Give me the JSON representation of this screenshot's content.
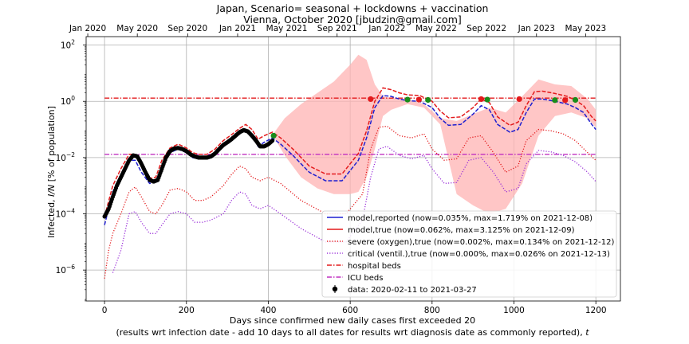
{
  "chart_data": {
    "type": "line",
    "title": "Japan, Scenario= seasonal + lockdowns + vaccination",
    "subtitle": "Vienna, October 2020 [jbudzin@gmail.com]",
    "xlabel_line1": "Days since confirmed new daily cases first exceeded 20",
    "xlabel_line2": "(results wrt infection date - add 10 days to all dates for results wrt diagnosis date as commonly reported), ",
    "xlabel_t": "t",
    "ylabel_pre": "Infected, ",
    "ylabel_ital": "I/N",
    "ylabel_post": " [% of population]",
    "y_scale": "log",
    "xlim": [
      -45,
      1260
    ],
    "ylim_exp": [
      -7.1,
      2.3
    ],
    "x_ticks": [
      "0",
      "200",
      "400",
      "600",
      "800",
      "1000",
      "1200"
    ],
    "x_tick_values": [
      0,
      200,
      400,
      600,
      800,
      1000,
      1200
    ],
    "y_tick_exponents": [
      2,
      0,
      -2,
      -4,
      -6
    ],
    "top_axis_ticks": [
      {
        "label": "Jan 2020",
        "day": -41
      },
      {
        "label": "May 2020",
        "day": 80
      },
      {
        "label": "Sep 2020",
        "day": 203
      },
      {
        "label": "Jan 2021",
        "day": 325
      },
      {
        "label": "May 2021",
        "day": 445
      },
      {
        "label": "Sep 2021",
        "day": 568
      },
      {
        "label": "Jan 2022",
        "day": 690
      },
      {
        "label": "May 2022",
        "day": 810
      },
      {
        "label": "Sep 2022",
        "day": 933
      },
      {
        "label": "Jan 2023",
        "day": 1055
      },
      {
        "label": "May 2023",
        "day": 1175
      }
    ],
    "grid": true,
    "legend_position": "lower-right",
    "colors": {
      "reported": "#1f1fd0",
      "true": "#e31a1c",
      "band": "#ffb3b3",
      "severe": "#e31a1c",
      "critical": "#9b30d9",
      "hospital": "#e31a1c",
      "icu": "#c030c0",
      "data": "#000000",
      "marker_green": "#1a8c1a",
      "marker_red": "#e31a1c"
    },
    "legend": [
      "model,reported (now=0.035%, max=1.719% on 2021-12-08)",
      "model,true (now=0.062%, max=3.125% on 2021-12-09)",
      "severe (oxygen),true (now=0.002%, max=0.134% on 2021-12-12)",
      "critical (ventil.),true (now=0.000%, max=0.026% on 2021-12-13)",
      "hospital beds",
      "ICU beds",
      "data: 2020-02-11 to 2021-03-27"
    ],
    "hospital_beds": 1.3,
    "icu_beds": 0.013,
    "series": [
      {
        "key": "band_upper",
        "x": [
          415,
          440,
          480,
          520,
          560,
          600,
          620,
          640,
          660,
          680,
          700,
          740,
          780,
          820,
          860,
          900,
          940,
          980,
          1020,
          1060,
          1100,
          1140,
          1180,
          1200
        ],
        "values": [
          0.08,
          0.25,
          0.8,
          2,
          5,
          20,
          45,
          30,
          4,
          1.5,
          1.3,
          1.2,
          0.8,
          0.25,
          0.2,
          0.35,
          0.6,
          0.4,
          1.5,
          6,
          4,
          3.5,
          1.2,
          0.5
        ]
      },
      {
        "key": "band_lower",
        "x": [
          415,
          440,
          480,
          520,
          560,
          600,
          620,
          640,
          660,
          680,
          700,
          740,
          780,
          820,
          860,
          900,
          940,
          980,
          1020,
          1060,
          1100,
          1140,
          1180,
          1200
        ],
        "values": [
          0.05,
          0.012,
          0.002,
          0.0008,
          0.0005,
          0.0005,
          0.0006,
          0.002,
          0.02,
          0.3,
          0.5,
          0.8,
          0.6,
          0.15,
          0.0005,
          0.0002,
          0.0001,
          0.00015,
          0.0012,
          0.06,
          0.3,
          0.4,
          0.25,
          0.12
        ]
      },
      {
        "name": "model,reported",
        "key": "reported",
        "x": [
          0,
          20,
          40,
          60,
          75,
          90,
          110,
          125,
          140,
          160,
          180,
          200,
          215,
          230,
          250,
          270,
          290,
          310,
          330,
          345,
          360,
          375,
          390,
          410,
          430,
          460,
          500,
          540,
          580,
          620,
          640,
          660,
          680,
          700,
          720,
          740,
          770,
          800,
          820,
          840,
          870,
          900,
          920,
          940,
          960,
          990,
          1010,
          1030,
          1050,
          1070,
          1100,
          1130,
          1150,
          1170,
          1190,
          1200
        ],
        "values": [
          4e-05,
          0.0006,
          0.002,
          0.008,
          0.008,
          0.003,
          0.0012,
          0.0014,
          0.005,
          0.015,
          0.02,
          0.015,
          0.01,
          0.009,
          0.009,
          0.013,
          0.025,
          0.04,
          0.07,
          0.1,
          0.06,
          0.025,
          0.035,
          0.05,
          0.03,
          0.012,
          0.003,
          0.0015,
          0.0015,
          0.008,
          0.05,
          0.6,
          1.6,
          1.5,
          1.2,
          1.05,
          1.0,
          0.6,
          0.25,
          0.14,
          0.15,
          0.35,
          0.7,
          0.5,
          0.15,
          0.08,
          0.1,
          0.4,
          1.2,
          1.2,
          1.0,
          0.8,
          0.6,
          0.4,
          0.15,
          0.1
        ]
      },
      {
        "name": "model,true",
        "key": "true",
        "x": [
          0,
          20,
          40,
          60,
          75,
          90,
          110,
          125,
          140,
          160,
          180,
          200,
          215,
          230,
          250,
          270,
          290,
          310,
          330,
          345,
          360,
          375,
          390,
          410,
          430,
          460,
          500,
          540,
          580,
          620,
          640,
          660,
          680,
          700,
          720,
          740,
          770,
          800,
          820,
          840,
          870,
          900,
          920,
          940,
          960,
          990,
          1010,
          1030,
          1050,
          1070,
          1100,
          1130,
          1150,
          1170,
          1190,
          1200
        ],
        "values": [
          8e-05,
          0.001,
          0.004,
          0.013,
          0.013,
          0.005,
          0.0018,
          0.002,
          0.008,
          0.022,
          0.03,
          0.022,
          0.015,
          0.013,
          0.013,
          0.02,
          0.04,
          0.065,
          0.11,
          0.15,
          0.1,
          0.045,
          0.06,
          0.08,
          0.05,
          0.02,
          0.005,
          0.0026,
          0.0026,
          0.014,
          0.09,
          1.0,
          3.0,
          2.6,
          2.0,
          1.7,
          1.6,
          1.0,
          0.45,
          0.26,
          0.28,
          0.6,
          1.2,
          0.9,
          0.28,
          0.14,
          0.18,
          0.7,
          2.2,
          2.3,
          1.9,
          1.5,
          1.1,
          0.7,
          0.28,
          0.2
        ]
      },
      {
        "name": "severe (oxygen),true",
        "key": "severe",
        "x": [
          0,
          10,
          20,
          40,
          60,
          75,
          90,
          110,
          125,
          140,
          160,
          180,
          200,
          220,
          240,
          260,
          290,
          310,
          330,
          345,
          360,
          380,
          400,
          430,
          480,
          540,
          590,
          630,
          650,
          670,
          690,
          720,
          750,
          780,
          800,
          830,
          860,
          890,
          920,
          950,
          980,
          1010,
          1030,
          1060,
          1090,
          1120,
          1150,
          1180,
          1200
        ],
        "values": [
          5e-07,
          5e-06,
          2e-05,
          0.0001,
          0.0006,
          0.0009,
          0.0004,
          0.00012,
          0.0001,
          0.0002,
          0.0007,
          0.0008,
          0.0006,
          0.0003,
          0.0003,
          0.0004,
          0.001,
          0.0025,
          0.005,
          0.004,
          0.002,
          0.0015,
          0.002,
          0.0012,
          0.0003,
          0.0001,
          0.0001,
          0.0005,
          0.02,
          0.12,
          0.13,
          0.06,
          0.05,
          0.07,
          0.02,
          0.008,
          0.009,
          0.05,
          0.06,
          0.015,
          0.003,
          0.005,
          0.04,
          0.1,
          0.09,
          0.07,
          0.04,
          0.015,
          0.008
        ]
      },
      {
        "name": "critical (ventil.),true",
        "key": "critical",
        "x": [
          20,
          40,
          60,
          75,
          90,
          110,
          125,
          140,
          160,
          180,
          200,
          220,
          240,
          260,
          290,
          310,
          330,
          345,
          360,
          380,
          400,
          430,
          480,
          540,
          590,
          630,
          650,
          670,
          690,
          720,
          750,
          780,
          800,
          830,
          860,
          890,
          920,
          950,
          980,
          1010,
          1030,
          1060,
          1090,
          1120,
          1150,
          1180,
          1200
        ],
        "values": [
          8e-07,
          5e-06,
          0.0001,
          0.00012,
          5e-05,
          2e-05,
          2e-05,
          4e-05,
          0.0001,
          0.00012,
          0.0001,
          5e-05,
          5e-05,
          6e-05,
          0.0001,
          0.0003,
          0.0006,
          0.0005,
          0.0002,
          0.00015,
          0.0002,
          0.0001,
          3e-05,
          1e-05,
          1e-05,
          6e-05,
          0.002,
          0.02,
          0.025,
          0.012,
          0.009,
          0.012,
          0.004,
          0.0012,
          0.0013,
          0.008,
          0.01,
          0.003,
          0.0006,
          0.0008,
          0.006,
          0.018,
          0.016,
          0.012,
          0.007,
          0.003,
          0.0014
        ]
      },
      {
        "name": "data",
        "key": "data",
        "x_start": 0,
        "x_end": 410,
        "step": 2,
        "x": [
          0,
          10,
          20,
          30,
          40,
          50,
          60,
          70,
          80,
          90,
          100,
          110,
          120,
          130,
          140,
          150,
          160,
          170,
          180,
          190,
          200,
          210,
          220,
          230,
          240,
          250,
          260,
          270,
          280,
          290,
          300,
          310,
          320,
          330,
          340,
          350,
          360,
          370,
          380,
          390,
          400,
          410
        ],
        "values": [
          8e-05,
          0.00015,
          0.0004,
          0.001,
          0.002,
          0.004,
          0.008,
          0.012,
          0.011,
          0.006,
          0.003,
          0.0016,
          0.0014,
          0.0016,
          0.004,
          0.01,
          0.017,
          0.021,
          0.022,
          0.02,
          0.017,
          0.013,
          0.011,
          0.01,
          0.01,
          0.01,
          0.011,
          0.014,
          0.02,
          0.028,
          0.035,
          0.045,
          0.06,
          0.08,
          0.095,
          0.085,
          0.06,
          0.04,
          0.025,
          0.025,
          0.03,
          0.04
        ]
      }
    ],
    "markers_red": [
      {
        "x": 650,
        "y": 1.2
      },
      {
        "x": 768,
        "y": 1.15
      },
      {
        "x": 920,
        "y": 1.2
      },
      {
        "x": 1013,
        "y": 1.2
      },
      {
        "x": 1125,
        "y": 1.1
      }
    ],
    "markers_green": [
      {
        "x": 413,
        "y": 0.06
      },
      {
        "x": 740,
        "y": 1.15
      },
      {
        "x": 790,
        "y": 1.12
      },
      {
        "x": 935,
        "y": 1.15
      },
      {
        "x": 1100,
        "y": 1.1
      },
      {
        "x": 1150,
        "y": 1.12
      }
    ]
  }
}
